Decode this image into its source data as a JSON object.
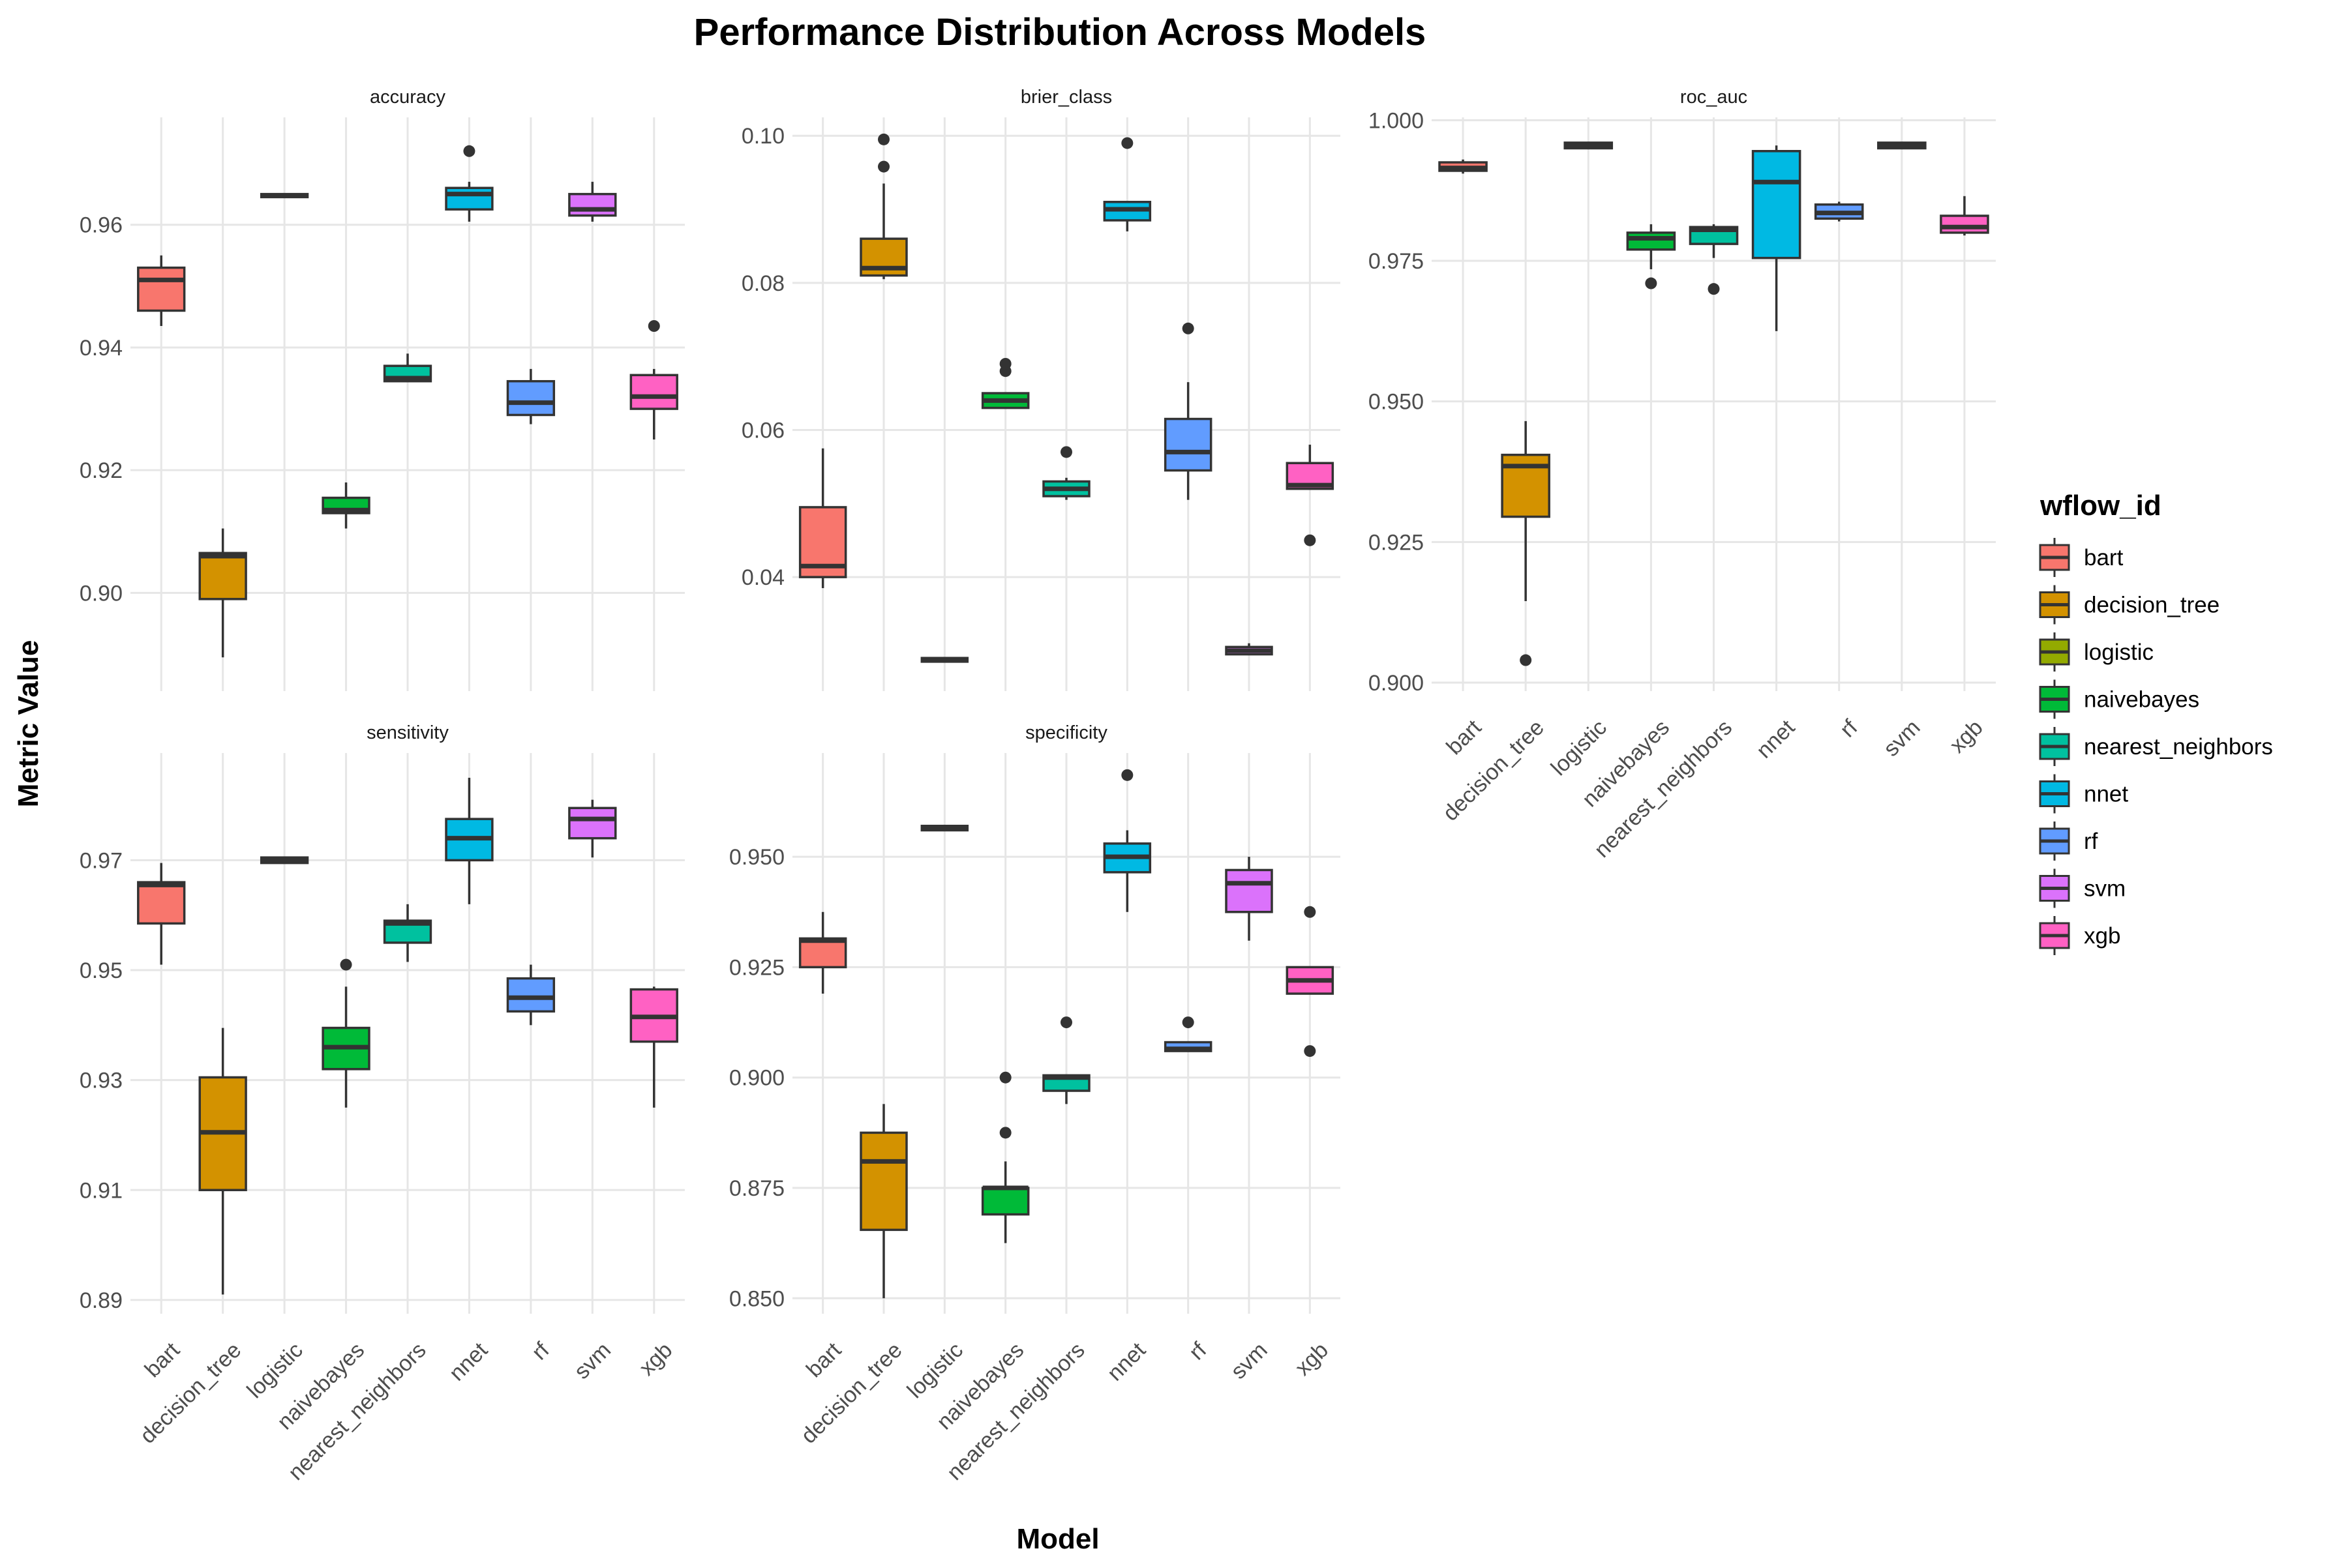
{
  "chart_data": {
    "type": "boxplot",
    "title": "Performance Distribution Across Models",
    "xlabel": "Model",
    "ylabel": "Metric Value",
    "categories": [
      "bart",
      "decision_tree",
      "logistic",
      "naivebayes",
      "nearest_neighbors",
      "nnet",
      "rf",
      "svm",
      "xgb"
    ],
    "legend": {
      "title": "wflow_id",
      "placement": "right",
      "items": [
        {
          "name": "bart",
          "color": "#F8766D"
        },
        {
          "name": "decision_tree",
          "color": "#D39200"
        },
        {
          "name": "logistic",
          "color": "#93AA00"
        },
        {
          "name": "naivebayes",
          "color": "#00BA38"
        },
        {
          "name": "nearest_neighbors",
          "color": "#00C19F"
        },
        {
          "name": "nnet",
          "color": "#00B9E3"
        },
        {
          "name": "rf",
          "color": "#619CFF"
        },
        {
          "name": "svm",
          "color": "#DB72FB"
        },
        {
          "name": "xgb",
          "color": "#FF61C3"
        }
      ]
    },
    "panels": [
      {
        "name": "accuracy",
        "ylim": [
          0.884,
          0.9775
        ],
        "yticks": [
          0.9,
          0.92,
          0.94,
          0.96
        ],
        "yticklabels": [
          "0.90",
          "0.92",
          "0.94",
          "0.96"
        ],
        "boxes": [
          {
            "model": "bart",
            "lower_whisker": 0.9435,
            "q1": 0.946,
            "median": 0.951,
            "q3": 0.953,
            "upper_whisker": 0.955,
            "outliers": []
          },
          {
            "model": "decision_tree",
            "lower_whisker": 0.8895,
            "q1": 0.899,
            "median": 0.906,
            "q3": 0.9065,
            "upper_whisker": 0.9105,
            "outliers": []
          },
          {
            "model": "logistic",
            "lower_whisker": 0.9645,
            "q1": 0.9645,
            "median": 0.9648,
            "q3": 0.965,
            "upper_whisker": 0.965,
            "outliers": []
          },
          {
            "model": "naivebayes",
            "lower_whisker": 0.9105,
            "q1": 0.913,
            "median": 0.9135,
            "q3": 0.9155,
            "upper_whisker": 0.918,
            "outliers": []
          },
          {
            "model": "nearest_neighbors",
            "lower_whisker": 0.9345,
            "q1": 0.9345,
            "median": 0.935,
            "q3": 0.937,
            "upper_whisker": 0.939,
            "outliers": []
          },
          {
            "model": "nnet",
            "lower_whisker": 0.9605,
            "q1": 0.9625,
            "median": 0.965,
            "q3": 0.966,
            "upper_whisker": 0.967,
            "outliers": [
              0.972
            ]
          },
          {
            "model": "rf",
            "lower_whisker": 0.9275,
            "q1": 0.929,
            "median": 0.931,
            "q3": 0.9345,
            "upper_whisker": 0.9365,
            "outliers": []
          },
          {
            "model": "svm",
            "lower_whisker": 0.9605,
            "q1": 0.9615,
            "median": 0.9625,
            "q3": 0.965,
            "upper_whisker": 0.967,
            "outliers": []
          },
          {
            "model": "xgb",
            "lower_whisker": 0.925,
            "q1": 0.93,
            "median": 0.932,
            "q3": 0.9355,
            "upper_whisker": 0.9365,
            "outliers": [
              0.9435
            ]
          }
        ]
      },
      {
        "name": "brier_class",
        "ylim": [
          0.0245,
          0.1025
        ],
        "yticks": [
          0.04,
          0.06,
          0.08,
          0.1
        ],
        "yticklabels": [
          "0.04",
          "0.06",
          "0.08",
          "0.10"
        ],
        "boxes": [
          {
            "model": "bart",
            "lower_whisker": 0.0385,
            "q1": 0.04,
            "median": 0.0415,
            "q3": 0.0495,
            "upper_whisker": 0.0575,
            "outliers": []
          },
          {
            "model": "decision_tree",
            "lower_whisker": 0.0805,
            "q1": 0.081,
            "median": 0.082,
            "q3": 0.086,
            "upper_whisker": 0.0935,
            "outliers": [
              0.0958,
              0.0995
            ]
          },
          {
            "model": "logistic",
            "lower_whisker": 0.0285,
            "q1": 0.0285,
            "median": 0.0287,
            "q3": 0.029,
            "upper_whisker": 0.029,
            "outliers": []
          },
          {
            "model": "naivebayes",
            "lower_whisker": 0.063,
            "q1": 0.063,
            "median": 0.064,
            "q3": 0.065,
            "upper_whisker": 0.065,
            "outliers": [
              0.068,
              0.069
            ]
          },
          {
            "model": "nearest_neighbors",
            "lower_whisker": 0.0505,
            "q1": 0.051,
            "median": 0.052,
            "q3": 0.053,
            "upper_whisker": 0.0535,
            "outliers": [
              0.057
            ]
          },
          {
            "model": "nnet",
            "lower_whisker": 0.087,
            "q1": 0.0885,
            "median": 0.09,
            "q3": 0.091,
            "upper_whisker": 0.091,
            "outliers": [
              0.099
            ]
          },
          {
            "model": "rf",
            "lower_whisker": 0.0505,
            "q1": 0.0545,
            "median": 0.057,
            "q3": 0.0615,
            "upper_whisker": 0.0665,
            "outliers": [
              0.0738
            ]
          },
          {
            "model": "svm",
            "lower_whisker": 0.0295,
            "q1": 0.0295,
            "median": 0.03,
            "q3": 0.0305,
            "upper_whisker": 0.031,
            "outliers": []
          },
          {
            "model": "xgb",
            "lower_whisker": 0.052,
            "q1": 0.052,
            "median": 0.0525,
            "q3": 0.0555,
            "upper_whisker": 0.058,
            "outliers": [
              0.045
            ]
          }
        ]
      },
      {
        "name": "roc_auc",
        "ylim": [
          0.8985,
          1.0005
        ],
        "yticks": [
          0.9,
          0.925,
          0.95,
          0.975,
          1.0
        ],
        "yticklabels": [
          "0.900",
          "0.925",
          "0.950",
          "0.975",
          "1.000"
        ],
        "boxes": [
          {
            "model": "bart",
            "lower_whisker": 0.9905,
            "q1": 0.991,
            "median": 0.9915,
            "q3": 0.9925,
            "upper_whisker": 0.993,
            "outliers": []
          },
          {
            "model": "decision_tree",
            "lower_whisker": 0.9145,
            "q1": 0.9295,
            "median": 0.9385,
            "q3": 0.9405,
            "upper_whisker": 0.9465,
            "outliers": [
              0.904
            ]
          },
          {
            "model": "logistic",
            "lower_whisker": 0.995,
            "q1": 0.995,
            "median": 0.9955,
            "q3": 0.996,
            "upper_whisker": 0.996,
            "outliers": []
          },
          {
            "model": "naivebayes",
            "lower_whisker": 0.9735,
            "q1": 0.977,
            "median": 0.979,
            "q3": 0.98,
            "upper_whisker": 0.9815,
            "outliers": [
              0.971
            ]
          },
          {
            "model": "nearest_neighbors",
            "lower_whisker": 0.9755,
            "q1": 0.978,
            "median": 0.9805,
            "q3": 0.981,
            "upper_whisker": 0.9815,
            "outliers": [
              0.97
            ]
          },
          {
            "model": "nnet",
            "lower_whisker": 0.9625,
            "q1": 0.9755,
            "median": 0.989,
            "q3": 0.9945,
            "upper_whisker": 0.9955,
            "outliers": []
          },
          {
            "model": "rf",
            "lower_whisker": 0.982,
            "q1": 0.9825,
            "median": 0.9835,
            "q3": 0.985,
            "upper_whisker": 0.9855,
            "outliers": []
          },
          {
            "model": "svm",
            "lower_whisker": 0.995,
            "q1": 0.995,
            "median": 0.9955,
            "q3": 0.996,
            "upper_whisker": 0.996,
            "outliers": []
          },
          {
            "model": "xgb",
            "lower_whisker": 0.9795,
            "q1": 0.98,
            "median": 0.981,
            "q3": 0.983,
            "upper_whisker": 0.9865,
            "outliers": []
          }
        ]
      },
      {
        "name": "sensitivity",
        "ylim": [
          0.8875,
          0.9895
        ],
        "yticks": [
          0.89,
          0.91,
          0.93,
          0.95,
          0.97
        ],
        "yticklabels": [
          "0.89",
          "0.91",
          "0.93",
          "0.95",
          "0.97"
        ],
        "boxes": [
          {
            "model": "bart",
            "lower_whisker": 0.951,
            "q1": 0.9585,
            "median": 0.9655,
            "q3": 0.966,
            "upper_whisker": 0.9695,
            "outliers": []
          },
          {
            "model": "decision_tree",
            "lower_whisker": 0.891,
            "q1": 0.91,
            "median": 0.9205,
            "q3": 0.9305,
            "upper_whisker": 0.9395,
            "outliers": []
          },
          {
            "model": "logistic",
            "lower_whisker": 0.9695,
            "q1": 0.9695,
            "median": 0.97,
            "q3": 0.9705,
            "upper_whisker": 0.9705,
            "outliers": []
          },
          {
            "model": "naivebayes",
            "lower_whisker": 0.925,
            "q1": 0.932,
            "median": 0.936,
            "q3": 0.9395,
            "upper_whisker": 0.947,
            "outliers": [
              0.951
            ]
          },
          {
            "model": "nearest_neighbors",
            "lower_whisker": 0.9515,
            "q1": 0.955,
            "median": 0.9585,
            "q3": 0.959,
            "upper_whisker": 0.962,
            "outliers": []
          },
          {
            "model": "nnet",
            "lower_whisker": 0.962,
            "q1": 0.97,
            "median": 0.974,
            "q3": 0.9775,
            "upper_whisker": 0.985,
            "outliers": []
          },
          {
            "model": "rf",
            "lower_whisker": 0.94,
            "q1": 0.9425,
            "median": 0.945,
            "q3": 0.9485,
            "upper_whisker": 0.951,
            "outliers": []
          },
          {
            "model": "svm",
            "lower_whisker": 0.9705,
            "q1": 0.974,
            "median": 0.9775,
            "q3": 0.9795,
            "upper_whisker": 0.981,
            "outliers": []
          },
          {
            "model": "xgb",
            "lower_whisker": 0.925,
            "q1": 0.937,
            "median": 0.9415,
            "q3": 0.9465,
            "upper_whisker": 0.947,
            "outliers": []
          }
        ]
      },
      {
        "name": "specificity",
        "ylim": [
          0.8465,
          0.9735
        ],
        "yticks": [
          0.85,
          0.875,
          0.9,
          0.925,
          0.95
        ],
        "yticklabels": [
          "0.850",
          "0.875",
          "0.900",
          "0.925",
          "0.950"
        ],
        "boxes": [
          {
            "model": "bart",
            "lower_whisker": 0.919,
            "q1": 0.925,
            "median": 0.931,
            "q3": 0.9315,
            "upper_whisker": 0.9375,
            "outliers": []
          },
          {
            "model": "decision_tree",
            "lower_whisker": 0.85,
            "q1": 0.8655,
            "median": 0.881,
            "q3": 0.8875,
            "upper_whisker": 0.894,
            "outliers": []
          },
          {
            "model": "logistic",
            "lower_whisker": 0.956,
            "q1": 0.956,
            "median": 0.9565,
            "q3": 0.957,
            "upper_whisker": 0.957,
            "outliers": []
          },
          {
            "model": "naivebayes",
            "lower_whisker": 0.8625,
            "q1": 0.869,
            "median": 0.875,
            "q3": 0.875,
            "upper_whisker": 0.881,
            "outliers": [
              0.8875,
              0.9
            ]
          },
          {
            "model": "nearest_neighbors",
            "lower_whisker": 0.894,
            "q1": 0.897,
            "median": 0.9,
            "q3": 0.9005,
            "upper_whisker": 0.9005,
            "outliers": [
              0.9125
            ]
          },
          {
            "model": "nnet",
            "lower_whisker": 0.9375,
            "q1": 0.9465,
            "median": 0.95,
            "q3": 0.953,
            "upper_whisker": 0.956,
            "outliers": [
              0.9685
            ]
          },
          {
            "model": "rf",
            "lower_whisker": 0.906,
            "q1": 0.906,
            "median": 0.9065,
            "q3": 0.908,
            "upper_whisker": 0.908,
            "outliers": [
              0.9125
            ]
          },
          {
            "model": "svm",
            "lower_whisker": 0.931,
            "q1": 0.9375,
            "median": 0.944,
            "q3": 0.947,
            "upper_whisker": 0.95,
            "outliers": []
          },
          {
            "model": "xgb",
            "lower_whisker": 0.919,
            "q1": 0.919,
            "median": 0.922,
            "q3": 0.925,
            "upper_whisker": 0.925,
            "outliers": [
              0.906,
              0.9375
            ]
          }
        ]
      }
    ]
  }
}
